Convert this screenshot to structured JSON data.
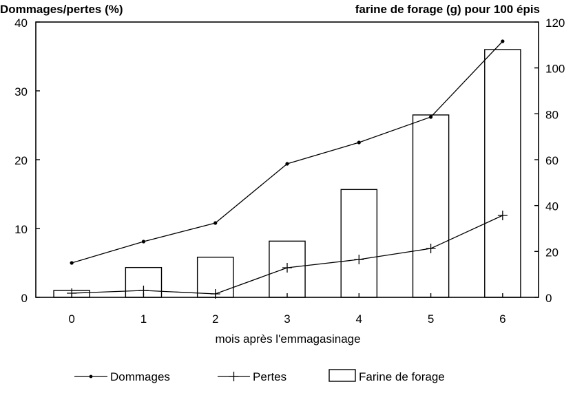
{
  "chart_data": {
    "type": "bar",
    "left_axis_title": "Dommages/pertes (%)",
    "right_axis_title": "farine de forage (g) pour 100 épis",
    "xlabel": "mois après l'emmagasinage",
    "categories": [
      "0",
      "1",
      "2",
      "3",
      "4",
      "5",
      "6"
    ],
    "left_ylim": [
      0,
      40
    ],
    "left_ticks": [
      "0",
      "10",
      "20",
      "30",
      "40"
    ],
    "right_ylim": [
      0,
      120
    ],
    "right_ticks": [
      "0",
      "20",
      "40",
      "60",
      "80",
      "100",
      "120"
    ],
    "bars": {
      "name": "Farine de forage",
      "axis": "right",
      "values": [
        3,
        13,
        17.5,
        24.5,
        47,
        79.5,
        108
      ]
    },
    "series": [
      {
        "name": "Dommages",
        "axis": "left",
        "marker": "dot",
        "values": [
          5,
          8.1,
          10.8,
          19.4,
          22.5,
          26.2,
          37.2
        ]
      },
      {
        "name": "Pertes",
        "axis": "left",
        "marker": "plus",
        "values": [
          0.6,
          1,
          0.5,
          4.3,
          5.5,
          7.1,
          11.9
        ]
      }
    ],
    "grid": false,
    "legend_position": "bottom",
    "colors": {
      "ink": "#000000",
      "background": "#ffffff"
    }
  }
}
